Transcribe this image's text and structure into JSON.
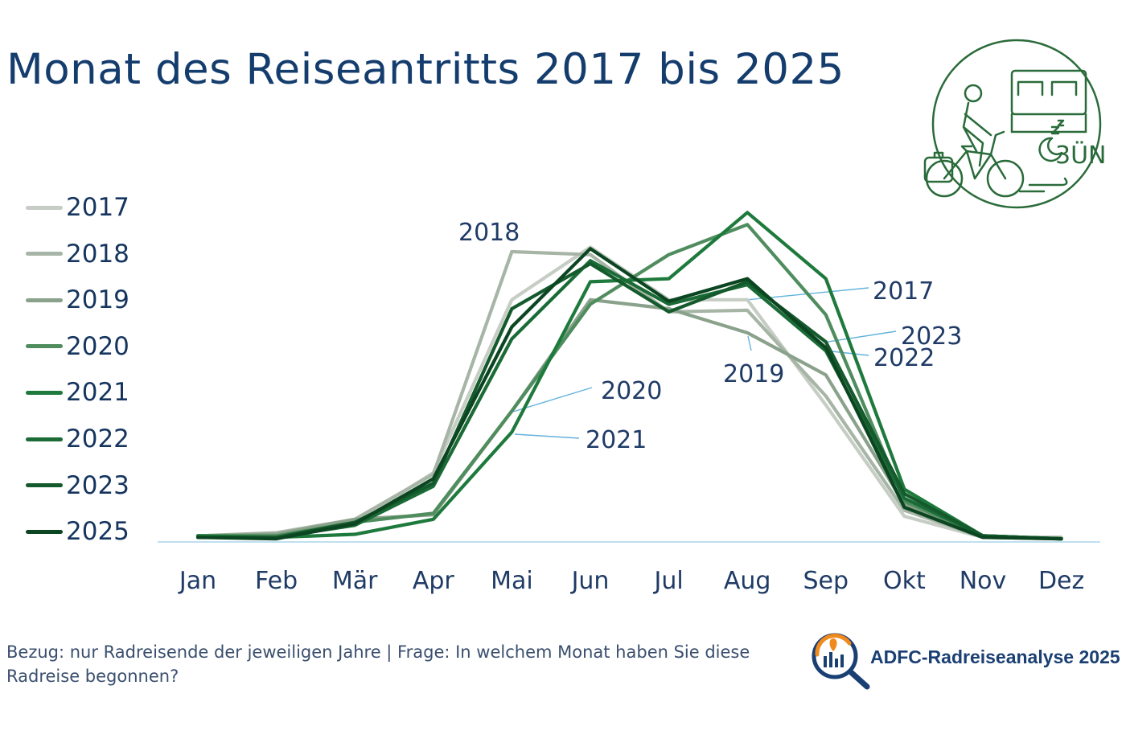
{
  "chart_data": {
    "type": "line",
    "title": "Monat des Reiseantritts 2017 bis 2025",
    "xlabel": "",
    "ylabel": "",
    "ylim": [
      0,
      22
    ],
    "grid": false,
    "legend_position": "left",
    "categories": [
      "Jan",
      "Feb",
      "Mär",
      "Apr",
      "Mai",
      "Jun",
      "Jul",
      "Aug",
      "Sep",
      "Okt",
      "Nov",
      "Dez"
    ],
    "series": [
      {
        "name": "2017",
        "color": "#c6cdc4",
        "values": [
          0.3,
          0.4,
          1.2,
          4.5,
          16.0,
          19.5,
          16.0,
          16.0,
          9.0,
          1.6,
          0.2,
          0.1
        ]
      },
      {
        "name": "2018",
        "color": "#a7b5a6",
        "values": [
          0.3,
          0.5,
          1.4,
          4.4,
          19.2,
          19.0,
          15.2,
          15.3,
          9.6,
          2.0,
          0.2,
          0.2
        ]
      },
      {
        "name": "2019",
        "color": "#8aa28b",
        "values": [
          0.3,
          0.4,
          1.4,
          1.7,
          8.6,
          16.0,
          15.4,
          13.8,
          11.0,
          2.4,
          0.2,
          0.1
        ]
      },
      {
        "name": "2020",
        "color": "#4f8c5e",
        "values": [
          0.3,
          0.3,
          1.2,
          1.8,
          8.6,
          15.7,
          19.0,
          21.0,
          15.0,
          2.6,
          0.3,
          0.1
        ]
      },
      {
        "name": "2021",
        "color": "#1e7a3c",
        "values": [
          0.3,
          0.2,
          0.4,
          1.4,
          7.2,
          17.2,
          17.4,
          21.8,
          17.4,
          3.4,
          0.3,
          0.1
        ]
      },
      {
        "name": "2022",
        "color": "#1a6b35",
        "values": [
          0.2,
          0.2,
          1.0,
          3.6,
          13.4,
          18.6,
          15.7,
          17.0,
          12.6,
          2.8,
          0.3,
          0.1
        ]
      },
      {
        "name": "2023",
        "color": "#145a2c",
        "values": [
          0.2,
          0.2,
          1.2,
          3.8,
          15.4,
          18.4,
          15.2,
          17.2,
          13.2,
          3.1,
          0.3,
          0.1
        ]
      },
      {
        "name": "2025",
        "color": "#0c4521",
        "values": [
          0.2,
          0.1,
          1.1,
          4.1,
          14.2,
          19.4,
          15.9,
          17.4,
          12.8,
          2.2,
          0.2,
          0.1
        ]
      }
    ],
    "annotations": [
      {
        "text": "2018",
        "series": "2018",
        "month": "Mai"
      },
      {
        "text": "2017",
        "series": "2017",
        "month": "Aug"
      },
      {
        "text": "2023",
        "series": "2023",
        "month": "Sep"
      },
      {
        "text": "2022",
        "series": "2022",
        "month": "Sep"
      },
      {
        "text": "2019",
        "series": "2019",
        "month": "Aug"
      },
      {
        "text": "2020",
        "series": "2020",
        "month": "Mai"
      },
      {
        "text": "2021",
        "series": "2021",
        "month": "Mai"
      }
    ]
  },
  "source_note": "Bezug: nur Radreisende der jeweiligen Jahre | Frage: In welchem Monat haben Sie diese Radreise begonnen?",
  "brand": {
    "text": "ADFC-Radreiseanalyse 2025"
  },
  "badge": {
    "text": "3ÜN"
  },
  "colors": {
    "title": "#143d6e",
    "axis_baseline": "#bfe0ef",
    "annotation_leader": "#62b3dc",
    "brand_orange": "#f08a1c",
    "brand_blue": "#1a3f73",
    "badge_green": "#2a6b3a"
  }
}
